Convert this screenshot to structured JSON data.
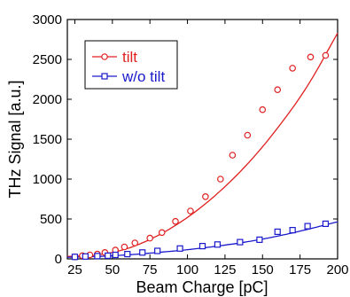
{
  "chart_data": {
    "type": "scatter",
    "title": "",
    "xlabel": "Beam Charge [pC]",
    "ylabel": "THz Signal [a.u.]",
    "xlim": [
      20,
      200
    ],
    "ylim": [
      0,
      3000
    ],
    "xticks": [
      25,
      50,
      75,
      100,
      125,
      150,
      175,
      200
    ],
    "yticks": [
      0,
      500,
      1000,
      1500,
      2000,
      2500,
      3000
    ],
    "grid": false,
    "legend_position": "top-left",
    "series": [
      {
        "name": "tilt",
        "color": "#e02020",
        "marker": "circle",
        "x": [
          25,
          30,
          35,
          40,
          45,
          52,
          58,
          65,
          75,
          83,
          92,
          102,
          112,
          122,
          130,
          140,
          150,
          160,
          170,
          182,
          192
        ],
        "y": [
          25,
          40,
          50,
          60,
          80,
          110,
          150,
          200,
          260,
          330,
          470,
          600,
          780,
          1000,
          1300,
          1550,
          1870,
          2120,
          2390,
          2530,
          2550
        ],
        "fit": {
          "type": "curve",
          "x": [
            20,
            40,
            60,
            80,
            100,
            120,
            140,
            160,
            180,
            200
          ],
          "y": [
            30,
            50,
            130,
            290,
            520,
            820,
            1190,
            1640,
            2170,
            2830
          ]
        }
      },
      {
        "name": "w/o tilt",
        "color": "#1a1acc",
        "marker": "square",
        "x": [
          25,
          32,
          40,
          47,
          52,
          60,
          70,
          80,
          95,
          110,
          120,
          135,
          148,
          160,
          170,
          180,
          192
        ],
        "y": [
          25,
          30,
          35,
          40,
          50,
          60,
          80,
          100,
          130,
          160,
          180,
          210,
          240,
          340,
          360,
          410,
          440
        ],
        "fit": {
          "type": "curve",
          "x": [
            20,
            40,
            60,
            80,
            100,
            120,
            140,
            160,
            180,
            200
          ],
          "y": [
            20,
            30,
            50,
            80,
            115,
            160,
            215,
            285,
            370,
            465
          ]
        }
      }
    ]
  }
}
